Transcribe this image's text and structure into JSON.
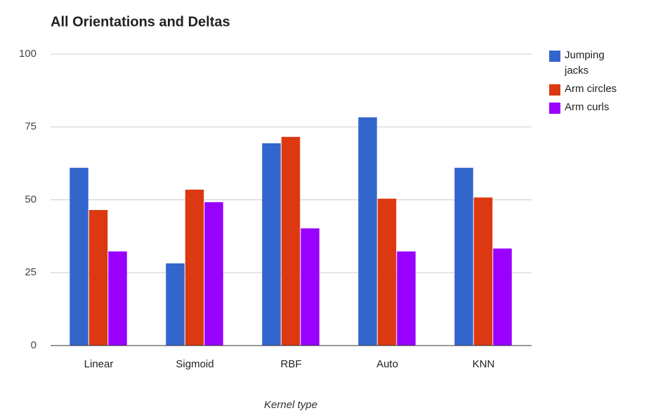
{
  "chart_data": {
    "type": "bar",
    "title": "All Orientations and Deltas",
    "x_label": "Kernel type",
    "categories": [
      "Linear",
      "Sigmoid",
      "RBF",
      "Auto",
      "KNN"
    ],
    "series": [
      {
        "name": "Jumping jacks",
        "color": "#3366cc",
        "values": [
          61,
          28.2,
          69.4,
          78.3,
          61
        ]
      },
      {
        "name": "Arm circles",
        "color": "#dc3912",
        "values": [
          46.5,
          53.5,
          71.6,
          50.4,
          50.8
        ]
      },
      {
        "name": "Arm curls",
        "color": "#9900ff",
        "values": [
          32.3,
          49.2,
          40.2,
          32.3,
          33.3
        ]
      }
    ],
    "ylim": [
      0,
      100
    ],
    "yticks": [
      0,
      25,
      50,
      75,
      100
    ],
    "grid": true,
    "legend": "right"
  }
}
